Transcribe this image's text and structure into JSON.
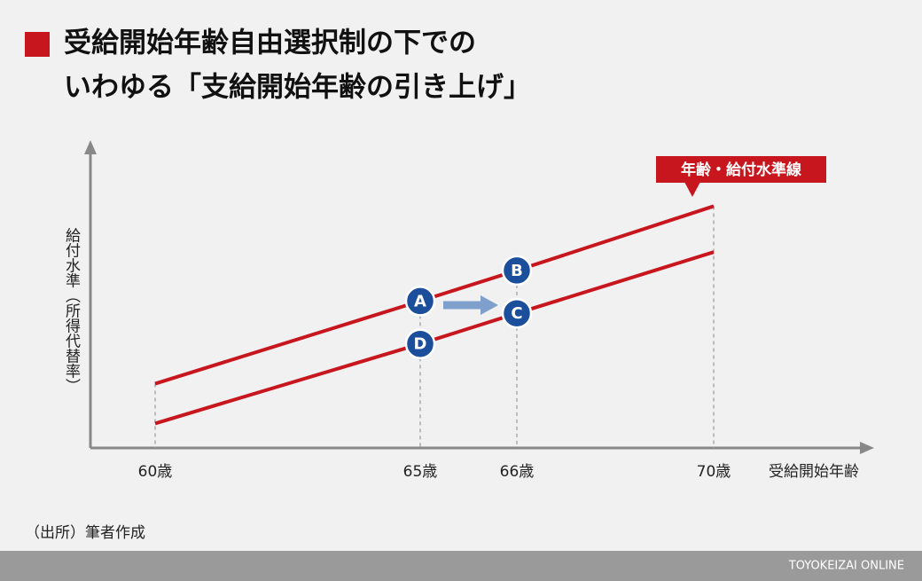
{
  "chart_data": {
    "type": "line",
    "title": [
      "受給開始年齢自由選択制の下での",
      "いわゆる「支給開始年齢の引き上げ」"
    ],
    "y_axis_label": "給付水準（所得代替率）",
    "x_axis_label": "受給開始年齢",
    "categories": [
      "60歳",
      "65歳",
      "66歳",
      "70歳"
    ],
    "series": [
      {
        "color": "#c8161e",
        "values": [
          21,
          48,
          58,
          79
        ]
      },
      {
        "color": "#c8161e",
        "values": [
          8,
          34,
          44,
          64
        ]
      }
    ],
    "ylim": [
      0,
      100
    ],
    "callout": "年齢・給付水準線",
    "points": [
      {
        "label": "A",
        "series": 0,
        "index": 1
      },
      {
        "label": "B",
        "series": 0,
        "index": 2
      },
      {
        "label": "C",
        "series": 1,
        "index": 2
      },
      {
        "label": "D",
        "series": 1,
        "index": 1
      }
    ],
    "source": "（出所）筆者作成",
    "footer": "TOYOKEIZAI ONLINE"
  }
}
